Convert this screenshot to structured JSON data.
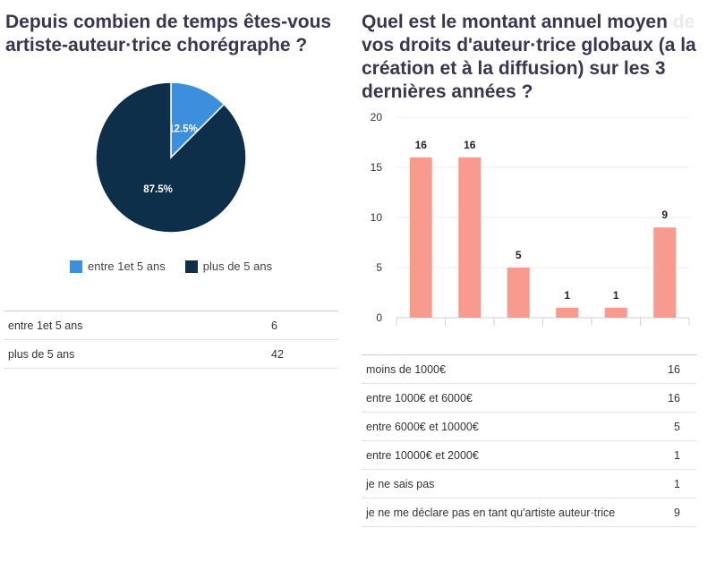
{
  "left": {
    "title": "Depuis combien de temps êtes-vous artiste-auteur·trice chorégraphe ?",
    "rows": [
      {
        "label": "entre 1et 5 ans",
        "value": "6"
      },
      {
        "label": "plus de 5 ans",
        "value": "42"
      }
    ]
  },
  "right": {
    "title_main": "Quel est le montant annuel moyen ",
    "title_ghost": "de",
    "title_rest": " vos droits d'auteur·trice globaux (a la création et à la diffusion) sur les 3 dernières années ?",
    "rows": [
      {
        "label": "moins de 1000€",
        "value": "16"
      },
      {
        "label": "entre 1000€ et 6000€",
        "value": "16"
      },
      {
        "label": "entre 6000€ et 10000€",
        "value": "5"
      },
      {
        "label": "entre 10000€ et 2000€",
        "value": "1"
      },
      {
        "label": "je ne sais pas",
        "value": "1"
      },
      {
        "label": "je ne me déclare pas en tant qu'artiste auteur·trice",
        "value": "9"
      }
    ]
  },
  "chart_data": [
    {
      "type": "pie",
      "title": "Depuis combien de temps êtes-vous artiste-auteur·trice chorégraphe ?",
      "categories": [
        "entre 1et 5 ans",
        "plus de 5 ans"
      ],
      "values": [
        12.5,
        87.5
      ],
      "labels": [
        "12.5%",
        "87.5%"
      ],
      "colors": [
        "#3b8fdc",
        "#0d2f4a"
      ],
      "legend": "bottom"
    },
    {
      "type": "bar",
      "title": "Quel est le montant annuel moyen de vos droits d'auteur·trice globaux (a la création et à la diffusion) sur les 3 dernières années ?",
      "categories": [
        "moins de 1000€",
        "entre 1000€ et 6000€",
        "entre 6000€ et 10000€",
        "entre 10000€ et 2000€",
        "je ne sais pas",
        "je ne me déclare pas en tant qu'artiste auteur·trice"
      ],
      "values": [
        16,
        16,
        5,
        1,
        1,
        9
      ],
      "yticks": [
        "0",
        "5",
        "10",
        "15",
        "20"
      ],
      "ylim": [
        0,
        20
      ],
      "color": "#f99a8e",
      "grid": true,
      "xlabel": "",
      "ylabel": ""
    }
  ]
}
